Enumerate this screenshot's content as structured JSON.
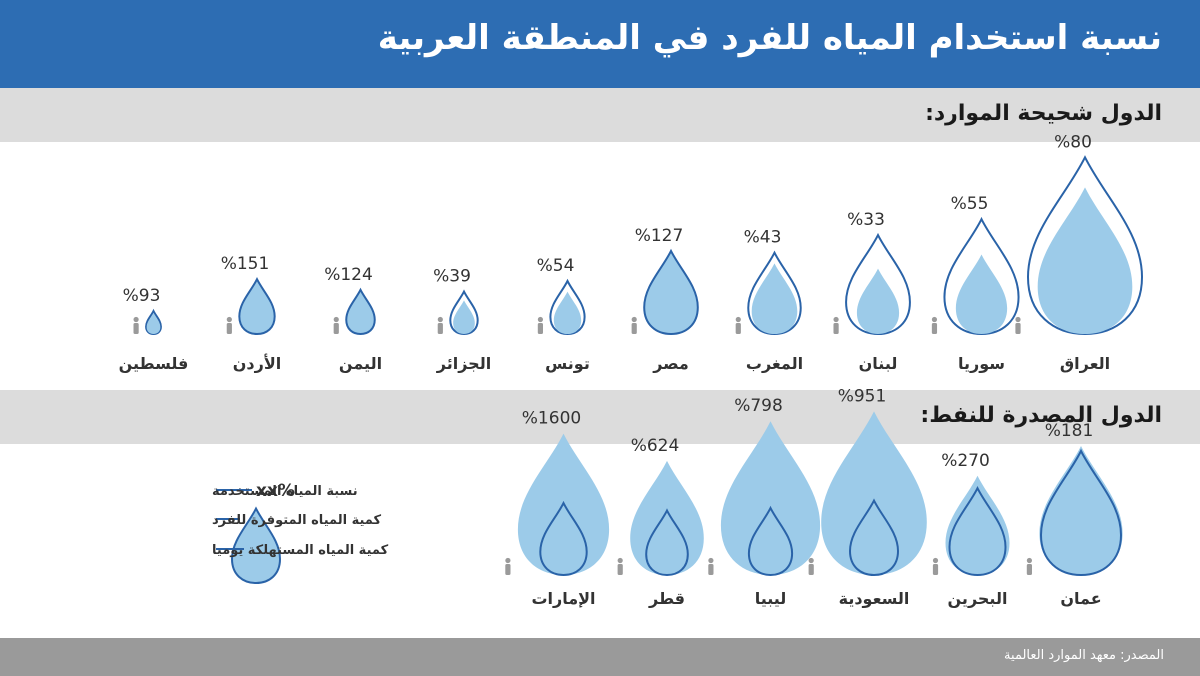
{
  "title": "نسبة استخدام المياه للفرد في المنطقة العربية",
  "sections": {
    "scarce": "الدول شحيحة الموارد:",
    "oil": "الدول المصدرة للنفط:"
  },
  "source": "المصدر: معهد الموارد العالمية",
  "colors": {
    "header": "#2d6db3",
    "drop_fill": "#9ccbe9",
    "drop_stroke": "#2a63a8",
    "band": "#dcdcdc",
    "footer": "#9a9a9a"
  },
  "legend": {
    "marker": "xx%",
    "items": [
      "نسبة المياه المستخدمة",
      "كمية المياه المتوفرة للفرد",
      "كمية المياه المستهلكة يوميا"
    ]
  },
  "chart_data": [
    {
      "type": "bar",
      "section": "الدول شحيحة الموارد:",
      "series": [
        {
          "name": "نسبة المياه المستخدمة",
          "unit": "%",
          "values": [
            80,
            55,
            33,
            43,
            127,
            54,
            39,
            124,
            151,
            93
          ]
        }
      ],
      "categories": [
        "العراق",
        "سوريا",
        "لبنان",
        "المغرب",
        "مصر",
        "تونس",
        "الجزائر",
        "اليمن",
        "الأردن",
        "فلسطين"
      ],
      "labels": [
        "%80",
        "%55",
        "%33",
        "%43",
        "%127",
        "%54",
        "%39",
        "%124",
        "%151",
        "%93"
      ],
      "available_level": [
        1.0,
        0.65,
        0.56,
        0.46,
        0.38,
        0.3,
        0.24,
        0.2,
        0.2,
        0.13
      ],
      "consumed_level": [
        0.83,
        0.45,
        0.37,
        0.4,
        0.47,
        0.24,
        0.19,
        0.25,
        0.31,
        0.12
      ]
    },
    {
      "type": "bar",
      "section": "الدول المصدرة للنفط:",
      "series": [
        {
          "name": "نسبة المياه المستخدمة",
          "unit": "%",
          "values": [
            181,
            270,
            951,
            798,
            624,
            1600
          ]
        }
      ],
      "categories": [
        "عمان",
        "البحرين",
        "السعودية",
        "ليبيا",
        "قطر",
        "الإمارات"
      ],
      "labels": [
        "%181",
        "%270",
        "%951",
        "%798",
        "%624",
        "%1600"
      ],
      "available_level": [
        0.52,
        0.4,
        0.66,
        0.62,
        0.46,
        0.57
      ],
      "consumed_level": [
        0.5,
        0.35,
        0.3,
        0.27,
        0.26,
        0.29
      ]
    }
  ]
}
